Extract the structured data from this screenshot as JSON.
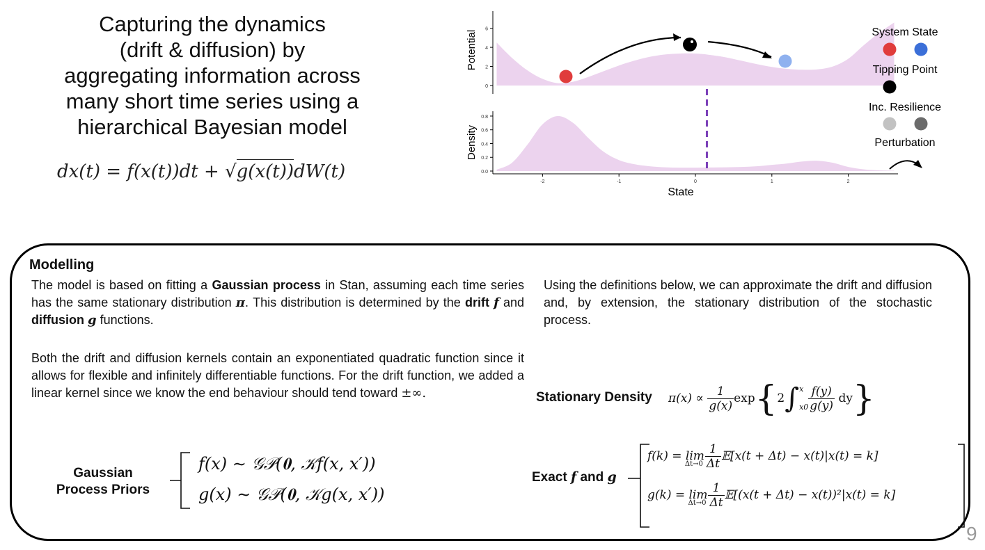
{
  "title_lines": [
    "Capturing the dynamics",
    "(drift & diffusion) by",
    "aggregating information across",
    "many short time series using a",
    "hierarchical Bayesian model"
  ],
  "sde": {
    "left": "dx(t) = f(x(t))dt + ",
    "sqrt_content": "g(x(t))",
    "right": "dW(t)"
  },
  "chart_data": [
    {
      "type": "area",
      "ylabel": "Potential",
      "yticks": [
        "0",
        "2",
        "4",
        "6"
      ],
      "ylim": [
        0,
        7.5
      ],
      "xlim": [
        -2.65,
        2.65
      ],
      "x": [
        -2.6,
        -2.4,
        -2.2,
        -2.0,
        -1.8,
        -1.6,
        -1.4,
        -1.2,
        -1.0,
        -0.8,
        -0.6,
        -0.4,
        -0.2,
        0.0,
        0.2,
        0.4,
        0.6,
        0.8,
        1.0,
        1.2,
        1.4,
        1.6,
        1.8,
        2.0,
        2.2,
        2.4,
        2.6
      ],
      "values": [
        4.5,
        2.9,
        1.6,
        0.7,
        0.25,
        0.4,
        0.9,
        1.5,
        2.1,
        2.6,
        3.0,
        3.25,
        3.35,
        3.35,
        3.2,
        2.95,
        2.6,
        2.25,
        1.95,
        1.75,
        1.65,
        1.7,
        2.0,
        2.8,
        4.2,
        5.5,
        6.6
      ]
    },
    {
      "type": "area",
      "ylabel": "Density",
      "xlabel": "State",
      "yticks": [
        "0.0",
        "0.2",
        "0.4",
        "0.6",
        "0.8"
      ],
      "xticks": [
        "-2",
        "-1",
        "0",
        "1",
        "2"
      ],
      "ylim": [
        0,
        0.85
      ],
      "xlim": [
        -2.65,
        2.65
      ],
      "x": [
        -2.6,
        -2.4,
        -2.2,
        -2.0,
        -1.8,
        -1.6,
        -1.4,
        -1.2,
        -1.0,
        -0.8,
        -0.6,
        -0.4,
        -0.2,
        0.0,
        0.2,
        0.4,
        0.6,
        0.8,
        1.0,
        1.2,
        1.4,
        1.6,
        1.8,
        2.0,
        2.2,
        2.4,
        2.6
      ],
      "values": [
        0.02,
        0.12,
        0.38,
        0.68,
        0.8,
        0.7,
        0.48,
        0.28,
        0.16,
        0.1,
        0.07,
        0.055,
        0.05,
        0.05,
        0.052,
        0.055,
        0.06,
        0.07,
        0.09,
        0.11,
        0.14,
        0.15,
        0.12,
        0.06,
        0.025,
        0.01,
        0.005
      ],
      "tipping_line_x": 0.15
    }
  ],
  "legend": {
    "system_state": "System State",
    "tipping_point": "Tipping Point",
    "inc_resilience": "Inc. Resilience",
    "perturbation": "Perturbation",
    "colors": {
      "red": "#e03c3c",
      "blue": "#3b6fd8",
      "light_blue": "#8fb1ef",
      "black": "#000000",
      "light_gray": "#c2c2c2",
      "dark_gray": "#6b6b6b",
      "fill": "#ecd3ee"
    }
  },
  "modelling": {
    "heading": "Modelling",
    "p1_a": "The model is based on fitting a ",
    "p1_gp": "Gaussian process",
    "p1_b": " in Stan, assuming each time series has the same stationary distribution ",
    "p1_pi": "π",
    "p1_c": ". This distribution is determined by the ",
    "p1_drift": "drift",
    "p1_f": "f",
    "p1_d": " and ",
    "p1_diff": "diffusion",
    "p1_g": "g",
    "p1_e": " functions.",
    "p2": "Both the drift and diffusion kernels contain an exponentiated quadratic function since it allows for flexible and infinitely differentiable functions. For the drift function, we added a linear kernel since we know the end behaviour should tend toward ",
    "p2_inf": "±∞.",
    "p3": "Using the definitions below, we can approximate the drift and diffusion and, by extension, the stationary distribution of the stochastic process.",
    "gp_label_1": "Gaussian",
    "gp_label_2": "Process Priors",
    "gp_f": "f(x) ∼ 𝒢𝒫(𝟎, 𝒦f(x, x′))",
    "gp_g": "g(x) ∼ 𝒢𝒫(𝟎, 𝒦g(x, x′))",
    "stationary_label": "Stationary Density",
    "pi_left": "π(x) ∝",
    "pi_num": "1",
    "pi_den": "g(x)",
    "pi_exp": "exp",
    "pi_two": "2",
    "pi_int_top": "x",
    "pi_int_bot": "x0",
    "pi_f_num": "f(y)",
    "pi_f_den": "g(y)",
    "pi_dy": "dy",
    "exact_label_a": "Exact ",
    "exact_label_f": "f",
    "exact_label_b": " and ",
    "exact_label_g": "g",
    "exact_f_left": "f(k) = lim",
    "exact_g_left": "g(k) = lim",
    "exact_lim_sub": "Δt→0",
    "exact_num": "1",
    "exact_den": "Δt",
    "exact_f_right": "𝔼[x(t + Δt) − x(t)|x(t) = k]",
    "exact_g_right": "𝔼[(x(t + Δt) − x(t))²|x(t) = k]"
  },
  "page_number": "9"
}
